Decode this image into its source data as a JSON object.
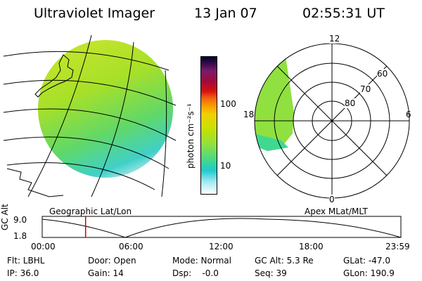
{
  "header": {
    "title": "Ultraviolet Imager",
    "date": "13 Jan 07",
    "time": "02:55:31 UT"
  },
  "colorbar": {
    "unit_label": "photon cm⁻²s⁻¹",
    "ticks": [
      "100",
      "10"
    ],
    "colors": [
      "#000030",
      "#3a0a4a",
      "#7a1a6a",
      "#a10a3a",
      "#d81010",
      "#f06010",
      "#f8a000",
      "#f0d000",
      "#c8e000",
      "#90e040",
      "#40d890",
      "#20c8d0",
      "#a0e8f0",
      "#ffffff"
    ]
  },
  "polar": {
    "mlt_labels": {
      "top": "12",
      "left": "18",
      "right": "6",
      "bottom": "0"
    },
    "lat_labels": [
      "60",
      "70",
      "80"
    ]
  },
  "maps": {
    "left_label": "Geographic Lat/Lon",
    "right_label": "Apex MLat/MLT"
  },
  "timeline": {
    "ylabel": "GC Alt",
    "y_ticks": [
      "9.0",
      "1.8"
    ],
    "x_ticks": [
      "00:00",
      "06:00",
      "12:00",
      "18:00",
      "23:59"
    ],
    "current_time_fraction": 0.121
  },
  "footer": {
    "flt": "Flt: LBHL",
    "door": "Door: Open",
    "mode": "Mode: Normal",
    "gc_alt": "GC Alt: 5.3 Re",
    "glat": "GLat: -47.0",
    "ip": "IP: 36.0",
    "gain": "Gain: 14",
    "dsp": "Dsp:    -0.0",
    "seq": "Seq: 39",
    "glon": "GLon: 190.9"
  }
}
